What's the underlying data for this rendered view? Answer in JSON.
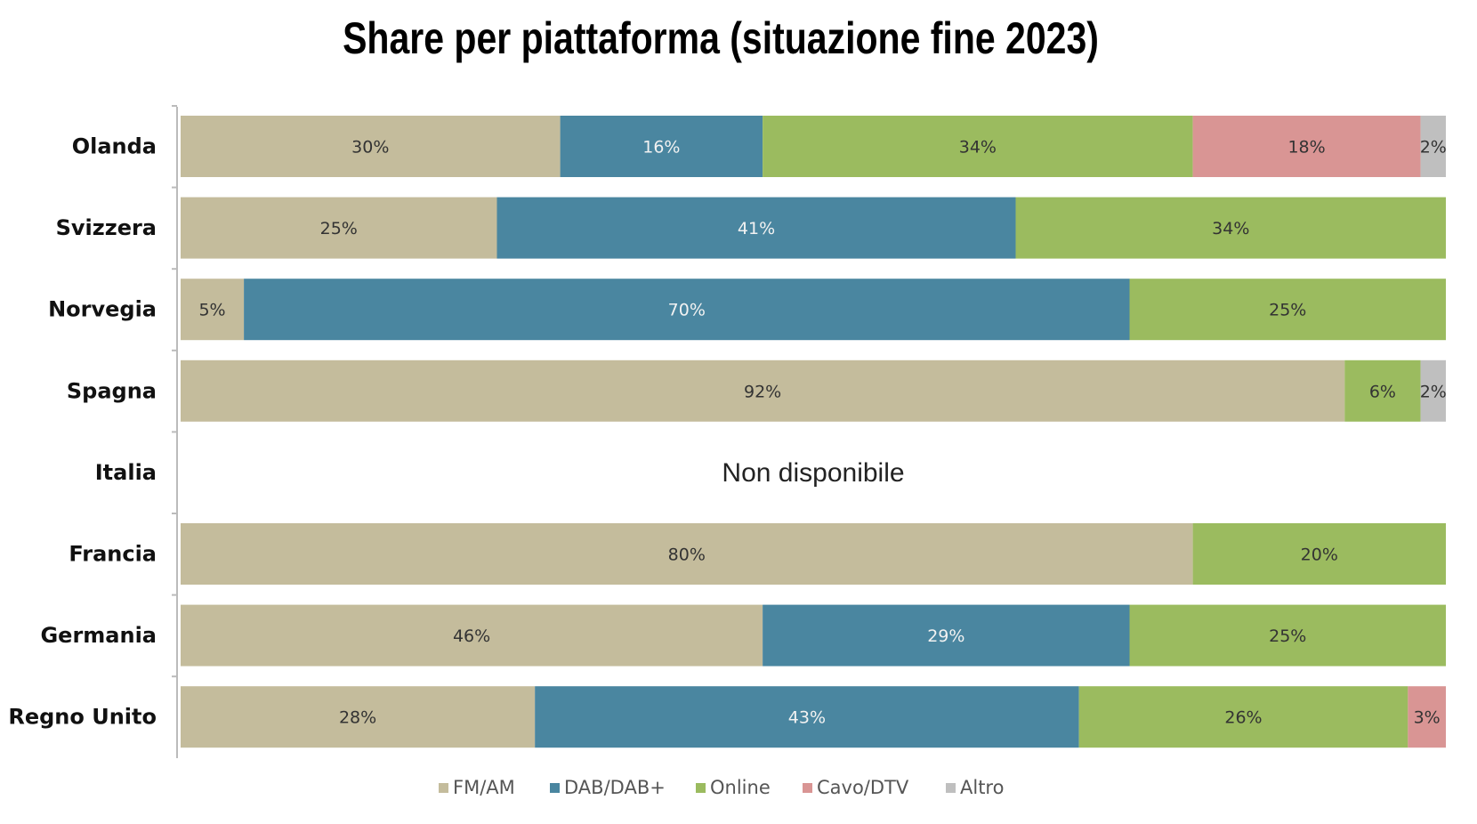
{
  "chart_data": {
    "type": "bar",
    "orientation": "horizontal",
    "stacked": true,
    "title": "Share per piattaforma (situazione fine 2023)",
    "xlim": [
      0,
      100
    ],
    "unit": "%",
    "grid": false,
    "legend_position": "bottom",
    "categories": [
      "Olanda",
      "Svizzera",
      "Norvegia",
      "Spagna",
      "Italia",
      "Francia",
      "Germania",
      "Regno Unito"
    ],
    "series": [
      {
        "name": "FM/AM",
        "color": "#c4bc9c",
        "values": [
          30,
          25,
          5,
          92,
          null,
          80,
          46,
          28
        ]
      },
      {
        "name": "DAB/DAB+",
        "color": "#4a86a0",
        "values": [
          16,
          41,
          70,
          null,
          null,
          null,
          29,
          43
        ]
      },
      {
        "name": "Online",
        "color": "#9bbb5f",
        "values": [
          34,
          34,
          25,
          6,
          null,
          20,
          25,
          26
        ]
      },
      {
        "name": "Cavo/DTV",
        "color": "#d99594",
        "values": [
          18,
          null,
          null,
          null,
          null,
          null,
          null,
          3
        ]
      },
      {
        "name": "Altro",
        "color": "#bfbfbf",
        "values": [
          2,
          null,
          null,
          2,
          null,
          null,
          null,
          null
        ]
      }
    ],
    "annotations": [
      {
        "category": "Italia",
        "text": "Non disponibile"
      }
    ]
  }
}
